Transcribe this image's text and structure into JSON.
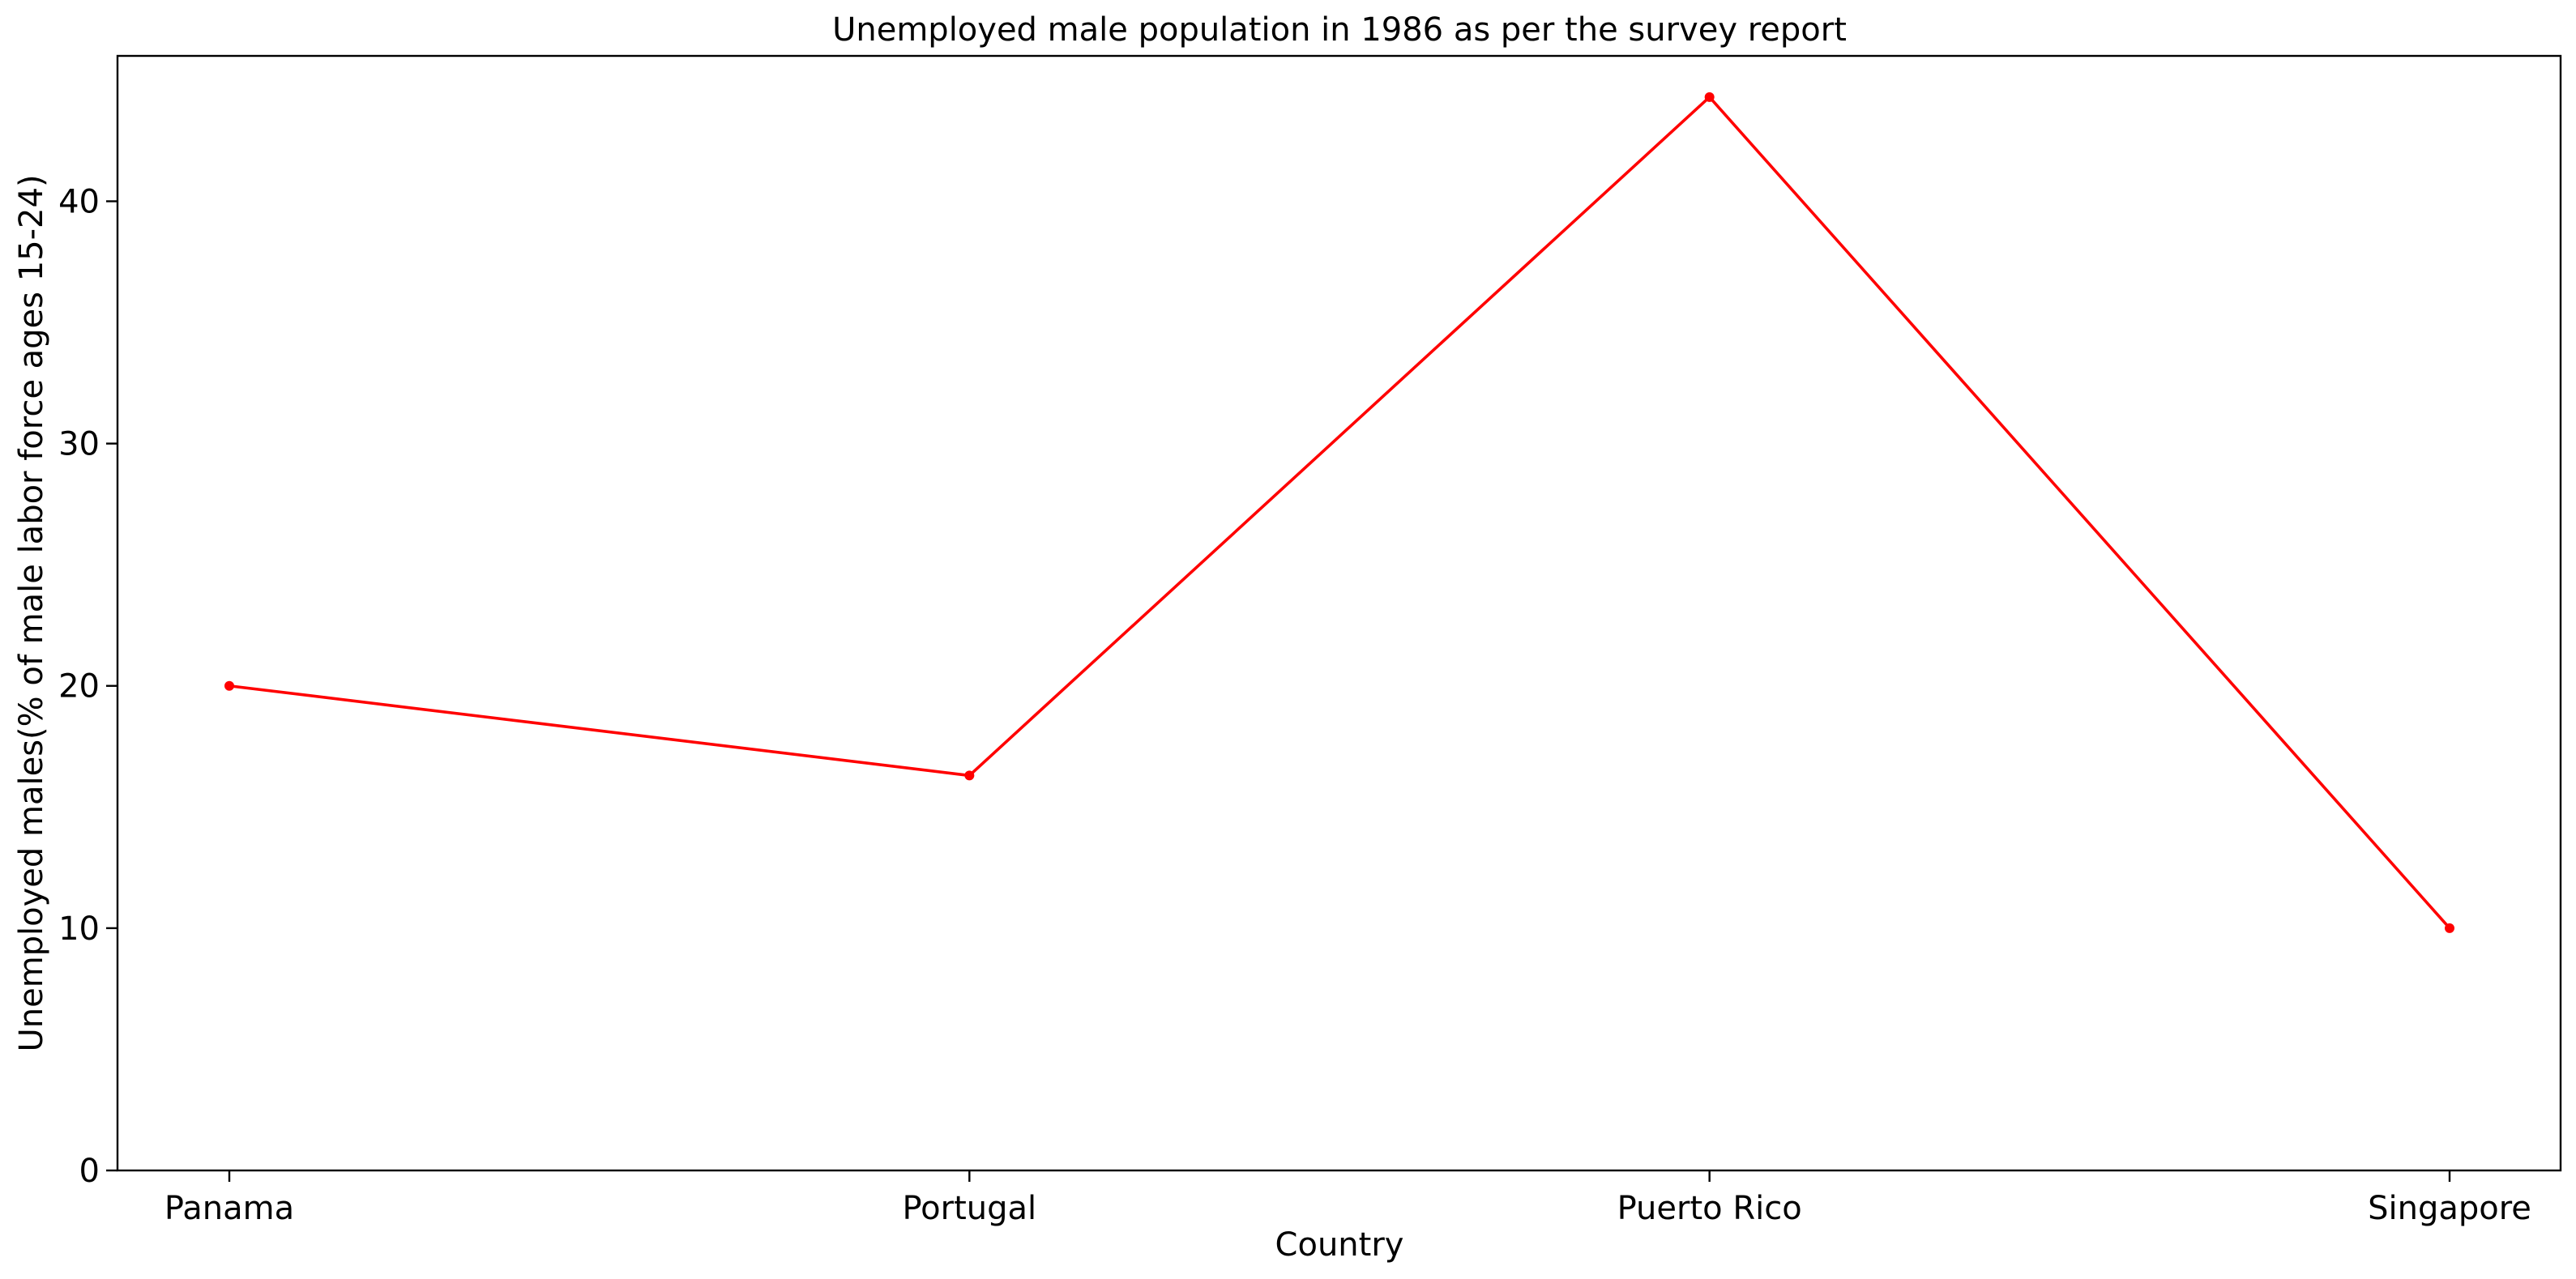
{
  "chart_data": {
    "type": "line",
    "title": "Unemployed male population in 1986 as per the survey report",
    "xlabel": "Country",
    "ylabel": "Unemployed males(% of male labor force ages 15-24)",
    "categories": [
      "Panama",
      "Portugal",
      "Puerto Rico",
      "Singapore"
    ],
    "series": [
      {
        "values": [
          20.0,
          16.3,
          44.3,
          10.0
        ],
        "color": "#ff0000"
      }
    ],
    "ylim": [
      0,
      46
    ],
    "yticks": [
      "0",
      "10",
      "20",
      "30",
      "40"
    ],
    "grid": false,
    "legend": "none"
  }
}
